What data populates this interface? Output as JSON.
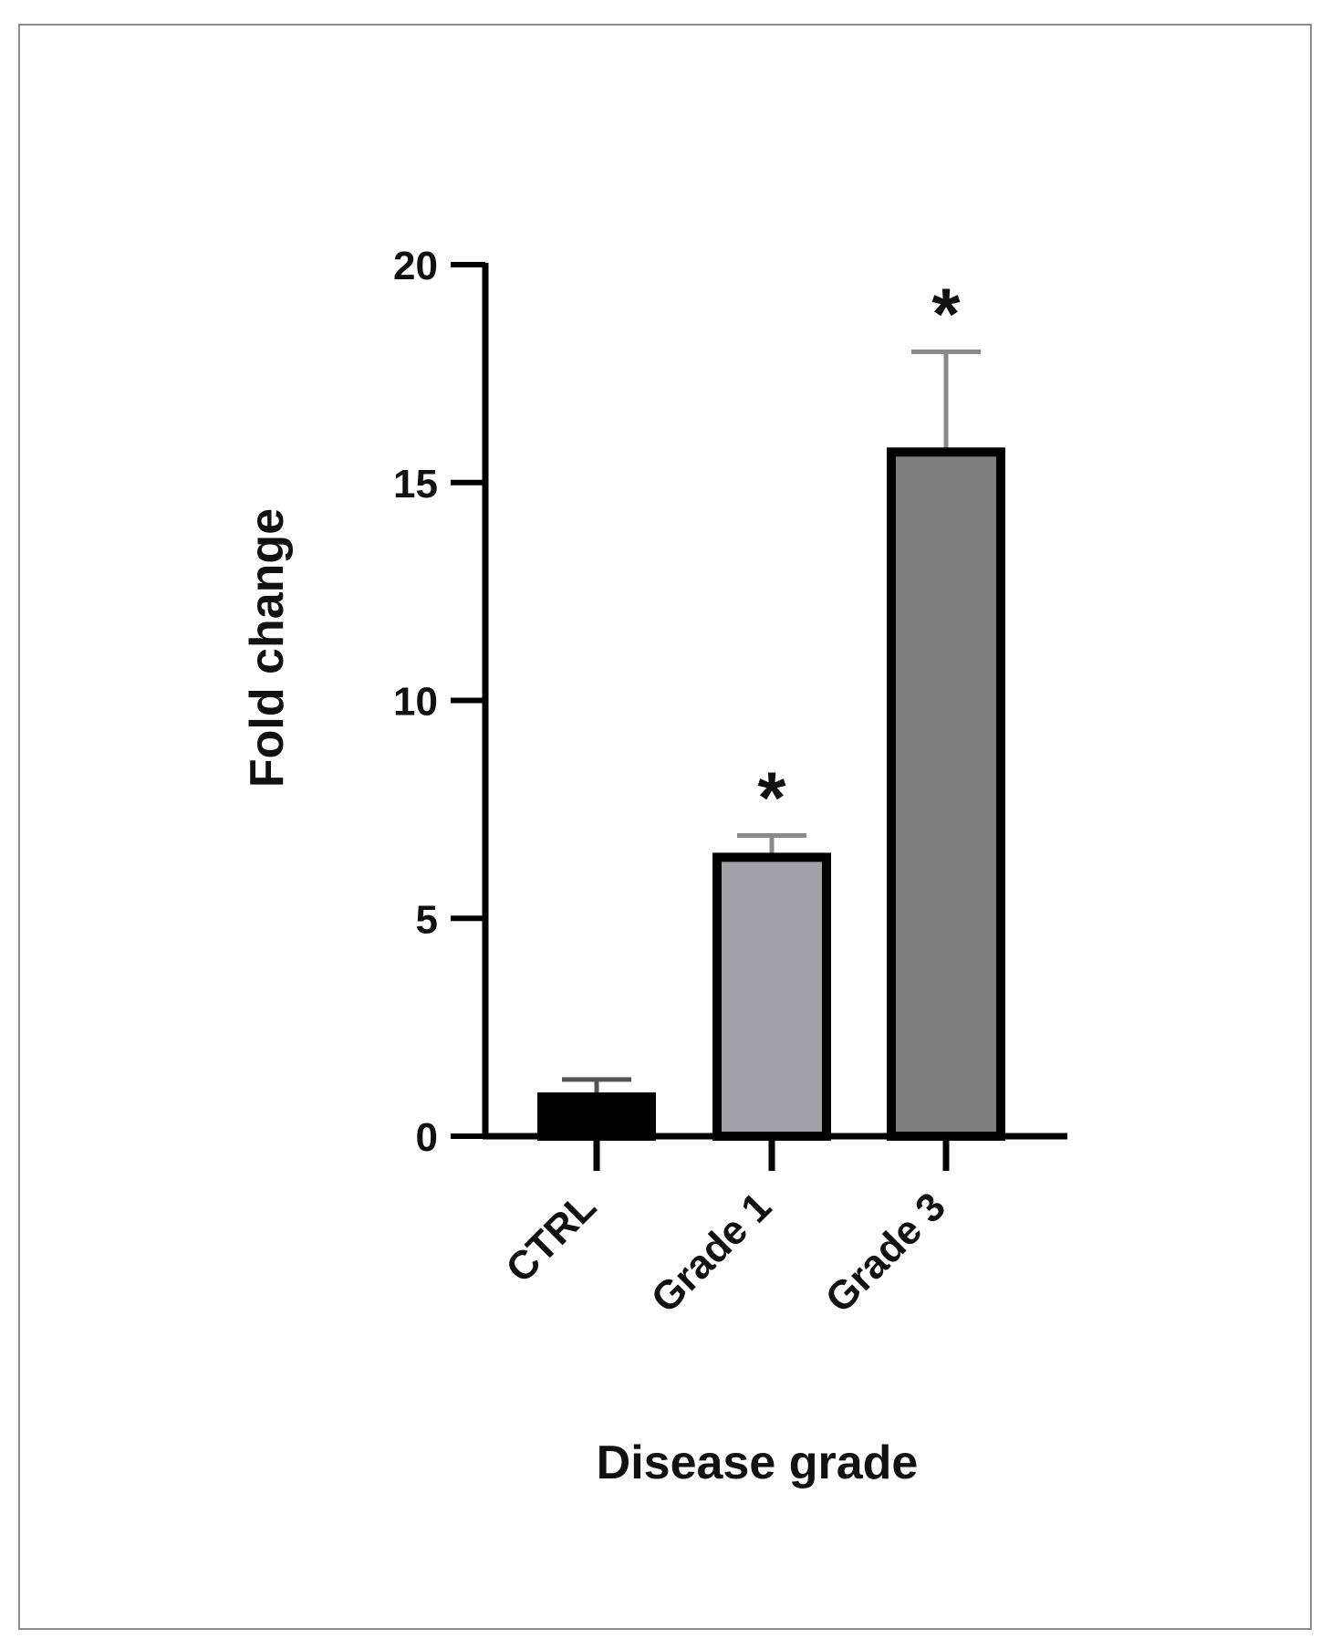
{
  "chart_data": {
    "type": "bar",
    "title": "",
    "xlabel": "Disease grade",
    "ylabel": "Fold change",
    "categories": [
      "CTRL",
      "Grade 1",
      "Grade 3"
    ],
    "values": [
      0.9,
      6.4,
      15.7
    ],
    "errors": [
      0.4,
      0.5,
      2.3
    ],
    "significance": [
      "",
      "*",
      "*"
    ],
    "bar_colors": [
      "#000000",
      "#a3a1a8",
      "#7f7f7f"
    ],
    "ylim": [
      0,
      20
    ],
    "yticks": [
      0,
      5,
      10,
      15,
      20
    ],
    "grid": false,
    "legend": "none"
  }
}
